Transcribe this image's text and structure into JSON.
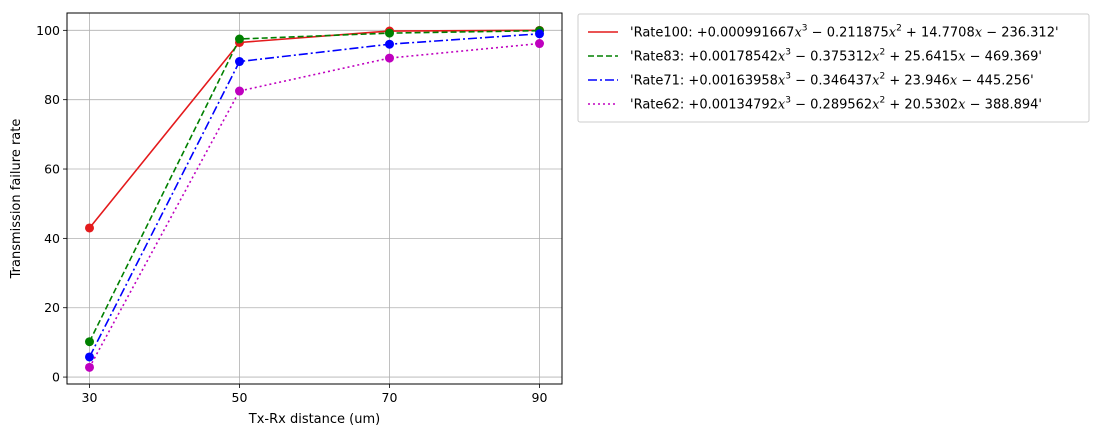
{
  "chart_data": {
    "type": "line",
    "xlabel": "Tx-Rx distance (um)",
    "ylabel": "Transmission failure rate",
    "x": [
      30,
      50,
      70,
      90
    ],
    "xticks": [
      "30",
      "50",
      "70",
      "90"
    ],
    "yticks": [
      "0",
      "20",
      "40",
      "60",
      "80",
      "100"
    ],
    "xlim": [
      27,
      93
    ],
    "ylim": [
      -2,
      105
    ],
    "grid": true,
    "legend_position": "outside-right",
    "series": [
      {
        "name": "'Rate100: +0.000991667x^3 − 0.211875x^2 + 14.7708x − 236.312'",
        "legend_parts": [
          "'Rate100: +0.000991667",
          "x",
          "3",
          " − 0.211875",
          "x",
          "2",
          " + 14.7708",
          "x",
          " − 236.312'"
        ],
        "values": [
          43,
          96.5,
          99.8,
          100
        ],
        "color": "#e41a1c",
        "dash": "solid"
      },
      {
        "name": "'Rate83: +0.00178542x^3 − 0.375312x^2 + 25.6415x − 469.369'",
        "legend_parts": [
          "'Rate83: +0.00178542",
          "x",
          "3",
          " − 0.375312",
          "x",
          "2",
          " + 25.6415",
          "x",
          " − 469.369'"
        ],
        "values": [
          10.2,
          97.5,
          99.2,
          99.9
        ],
        "color": "#008000",
        "dash": "dashed"
      },
      {
        "name": "'Rate71: +0.00163958x^3 − 0.346437x^2 + 23.946x − 445.256'",
        "legend_parts": [
          "'Rate71: +0.00163958",
          "x",
          "3",
          " − 0.346437",
          "x",
          "2",
          " + 23.946",
          "x",
          " − 445.256'"
        ],
        "values": [
          5.8,
          91,
          96,
          99
        ],
        "color": "#0000ff",
        "dash": "dashdot"
      },
      {
        "name": "'Rate62: +0.00134792x^3 − 0.289562x^2 + 20.5302x − 388.894'",
        "legend_parts": [
          "'Rate62: +0.00134792",
          "x",
          "3",
          " − 0.289562",
          "x",
          "2",
          " + 20.5302",
          "x",
          " − 388.894'"
        ],
        "values": [
          2.8,
          82.5,
          92,
          96.2
        ],
        "color": "#bf00bf",
        "dash": "dotted"
      }
    ]
  }
}
